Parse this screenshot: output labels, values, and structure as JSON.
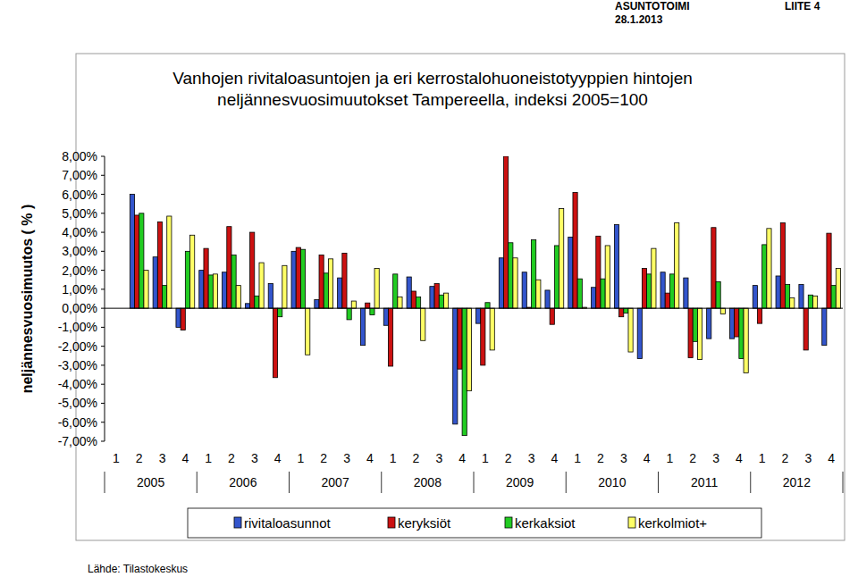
{
  "header": {
    "left": "ASUNTOTOIMI",
    "date": "28.1.2013",
    "right": "LIITE 4"
  },
  "source": "Lähde: Tilastokeskus",
  "chart_data": {
    "type": "bar",
    "title": [
      "Vanhojen rivitaloasuntojen ja eri kerrostalohuoneistotyyppien hintojen",
      "neljännesvuosimuutokset Tampereella, indeksi 2005=100"
    ],
    "y_label": "neljännesvuosimuutos ( % )",
    "categories": [
      "1",
      "2",
      "3",
      "4",
      "1",
      "2",
      "3",
      "4",
      "1",
      "2",
      "3",
      "4",
      "1",
      "2",
      "3",
      "4",
      "1",
      "2",
      "3",
      "4",
      "1",
      "2",
      "3",
      "4",
      "1",
      "2",
      "3",
      "4",
      "1",
      "2",
      "3",
      "4"
    ],
    "year_labels": [
      "2005",
      "2006",
      "2007",
      "2008",
      "2009",
      "2010",
      "2011",
      "2012"
    ],
    "ylim": [
      -7,
      8
    ],
    "yticks": [
      {
        "value": 8,
        "label": "8,00%"
      },
      {
        "value": 7,
        "label": "7,00%"
      },
      {
        "value": 6,
        "label": "6,00%"
      },
      {
        "value": 5,
        "label": "5,00%"
      },
      {
        "value": 4,
        "label": "4,00%"
      },
      {
        "value": 3,
        "label": "3,00%"
      },
      {
        "value": 2,
        "label": "2,00%"
      },
      {
        "value": 1,
        "label": "1,00%"
      },
      {
        "value": 0,
        "label": "0,00%"
      },
      {
        "value": -1,
        "label": "-1,00%"
      },
      {
        "value": -2,
        "label": "-2,00%"
      },
      {
        "value": -3,
        "label": "-3,00%"
      },
      {
        "value": -4,
        "label": "-4,00%"
      },
      {
        "value": -5,
        "label": "-5,00%"
      },
      {
        "value": -6,
        "label": "-6,00%"
      },
      {
        "value": -7,
        "label": "-7,00%"
      }
    ],
    "grid": false,
    "legend": "bottom",
    "series": [
      {
        "name": "rivitaloasunnot",
        "color": "#3355cc",
        "values": [
          null,
          6.0,
          2.7,
          -1.0,
          2.0,
          1.9,
          0.25,
          1.3,
          3.0,
          0.45,
          1.6,
          -1.95,
          -0.9,
          1.65,
          1.15,
          -6.1,
          -0.8,
          2.65,
          1.9,
          0.95,
          3.75,
          1.1,
          4.4,
          -2.65,
          1.9,
          1.6,
          -1.6,
          -1.6,
          1.2,
          1.7,
          1.25,
          -1.95
        ]
      },
      {
        "name": "keryksiöt",
        "color": "#cc1111",
        "values": [
          null,
          4.9,
          4.55,
          -1.15,
          3.15,
          4.3,
          4.0,
          -3.65,
          3.2,
          2.8,
          2.9,
          0.28,
          -3.05,
          0.9,
          1.3,
          -3.2,
          -3.0,
          8.0,
          0.05,
          -0.85,
          6.1,
          3.8,
          -0.45,
          2.1,
          0.8,
          -2.6,
          4.25,
          -1.5,
          -0.8,
          4.5,
          -2.2,
          3.95
        ]
      },
      {
        "name": "kerkaksiot",
        "color": "#22cc22",
        "values": [
          null,
          5.0,
          1.2,
          3.0,
          1.75,
          2.8,
          0.65,
          -0.45,
          3.1,
          1.85,
          -0.6,
          -0.35,
          1.8,
          0.6,
          0.7,
          -6.7,
          0.3,
          3.45,
          3.6,
          3.3,
          1.55,
          1.55,
          -0.25,
          1.8,
          1.8,
          -1.75,
          1.4,
          -2.65,
          3.35,
          1.25,
          0.7,
          1.2
        ]
      },
      {
        "name": "kerkolmiot+",
        "color": "#ffff66",
        "values": [
          null,
          2.0,
          4.85,
          3.85,
          1.8,
          1.2,
          2.4,
          2.25,
          -2.45,
          2.6,
          0.38,
          2.1,
          0.6,
          -1.7,
          0.8,
          -4.35,
          -2.2,
          2.65,
          1.5,
          5.25,
          0.05,
          3.3,
          -2.3,
          3.15,
          4.5,
          -2.7,
          -0.3,
          -3.4,
          4.2,
          0.55,
          0.65,
          2.1
        ]
      }
    ]
  }
}
